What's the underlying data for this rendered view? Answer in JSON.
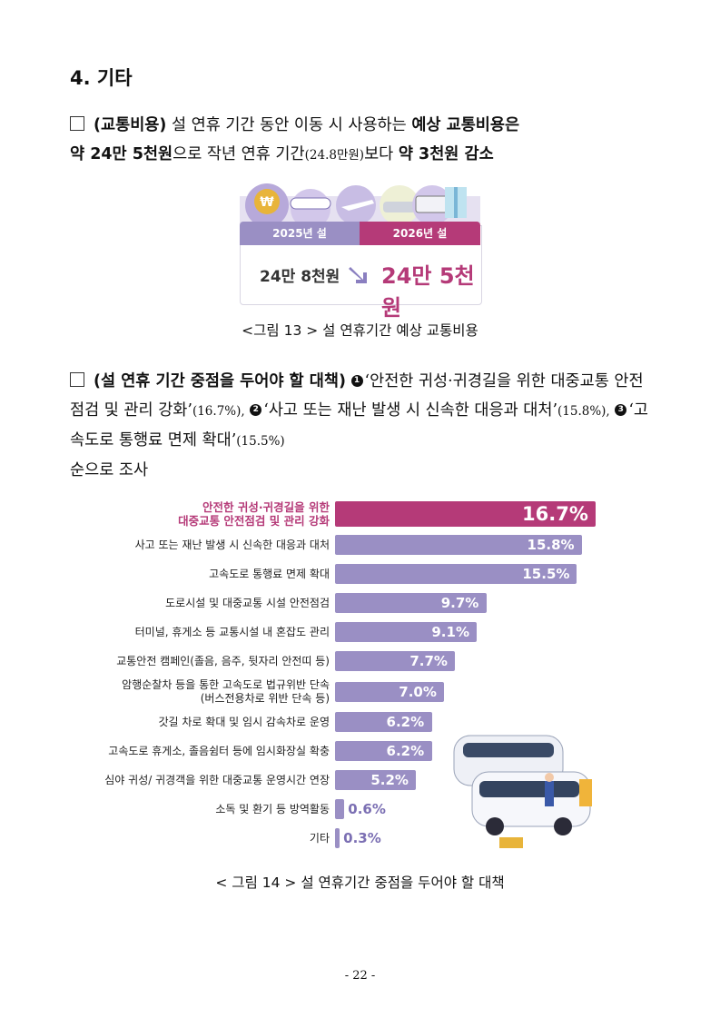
{
  "section": {
    "title": "4. 기타"
  },
  "para1": {
    "lead": "(교통비용)",
    "text1": " 설 연휴 기간 동안 이동 시 사용하는 ",
    "bold1": "예상 교통비용은",
    "bold2": "약 24만 5천원",
    "text2": "으로 작년 연휴 기간",
    "small1": "(24.8만원)",
    "text3": "보다 ",
    "bold3": "약 3천원 감소"
  },
  "fig13": {
    "label_2025": "2025년 설",
    "label_2026": "2026년 설",
    "value_2025": "24만 8천원",
    "value_2026": "24만 5천원",
    "caption": "<그림 13 > 설 연휴기간 예상 교통비용",
    "colors": {
      "left": "#9a8fc4",
      "right": "#b53a78"
    }
  },
  "para2": {
    "lead": "(설 연휴 기간 중점을 두어야 할 대책)",
    "n1": "1",
    "item1": "‘안전한 귀성·귀경길을 위한 대중교통 안전점검 및 관리 강화’",
    "p1": "(16.7%),",
    "n2": "2",
    "item2": "‘사고 또는 재난 발생 시 신속한 대응과 대처’",
    "p2": "(15.8%),",
    "n3": "3",
    "item3": "‘고속도로 통행료 면제 확대’",
    "p3": "(15.5%)",
    "tail": "순으로 조사"
  },
  "chart_data": {
    "type": "bar",
    "orientation": "horizontal",
    "categories": [
      [
        "안전한 귀성·귀경길을 위한",
        "대중교통 안전점검 및 관리 강화"
      ],
      [
        "사고 또는 재난 발생 시 신속한 대응과 대처"
      ],
      [
        "고속도로 통행료 면제 확대"
      ],
      [
        "도로시설 및 대중교통 시설 안전점검"
      ],
      [
        "터미널, 휴게소 등 교통시설 내 혼잡도 관리"
      ],
      [
        "교통안전 캠페인(졸음, 음주, 뒷자리 안전띠 등)"
      ],
      [
        "암행순찰차 등을 통한 고속도로 법규위반 단속",
        "(버스전용차로 위반 단속 등)"
      ],
      [
        "갓길 차로 확대 및 임시 감속차로 운영"
      ],
      [
        "고속도로 휴게소, 졸음쉼터 등에 임시화장실 확충"
      ],
      [
        "심야 귀성/ 귀경객을 위한 대중교통 운영시간 연장"
      ],
      [
        "소독 및 환기 등 방역활동"
      ],
      [
        "기타"
      ]
    ],
    "values": [
      16.7,
      15.8,
      15.5,
      9.7,
      9.1,
      7.7,
      7.0,
      6.2,
      6.2,
      5.2,
      0.6,
      0.3
    ],
    "value_labels": [
      "16.7%",
      "15.8%",
      "15.5%",
      "9.7%",
      "9.1%",
      "7.7%",
      "7.0%",
      "6.2%",
      "6.2%",
      "5.2%",
      "0.6%",
      "0.3%"
    ],
    "highlight_index": 0,
    "xlim": [
      0,
      16.7
    ],
    "colors": {
      "bar": "#9a8fc4",
      "highlight": "#b53a78"
    }
  },
  "fig14": {
    "caption": "< 그림 14 > 설 연휴기간 중점을 두어야 할 대책"
  },
  "footer": {
    "page": "- 22 -"
  }
}
